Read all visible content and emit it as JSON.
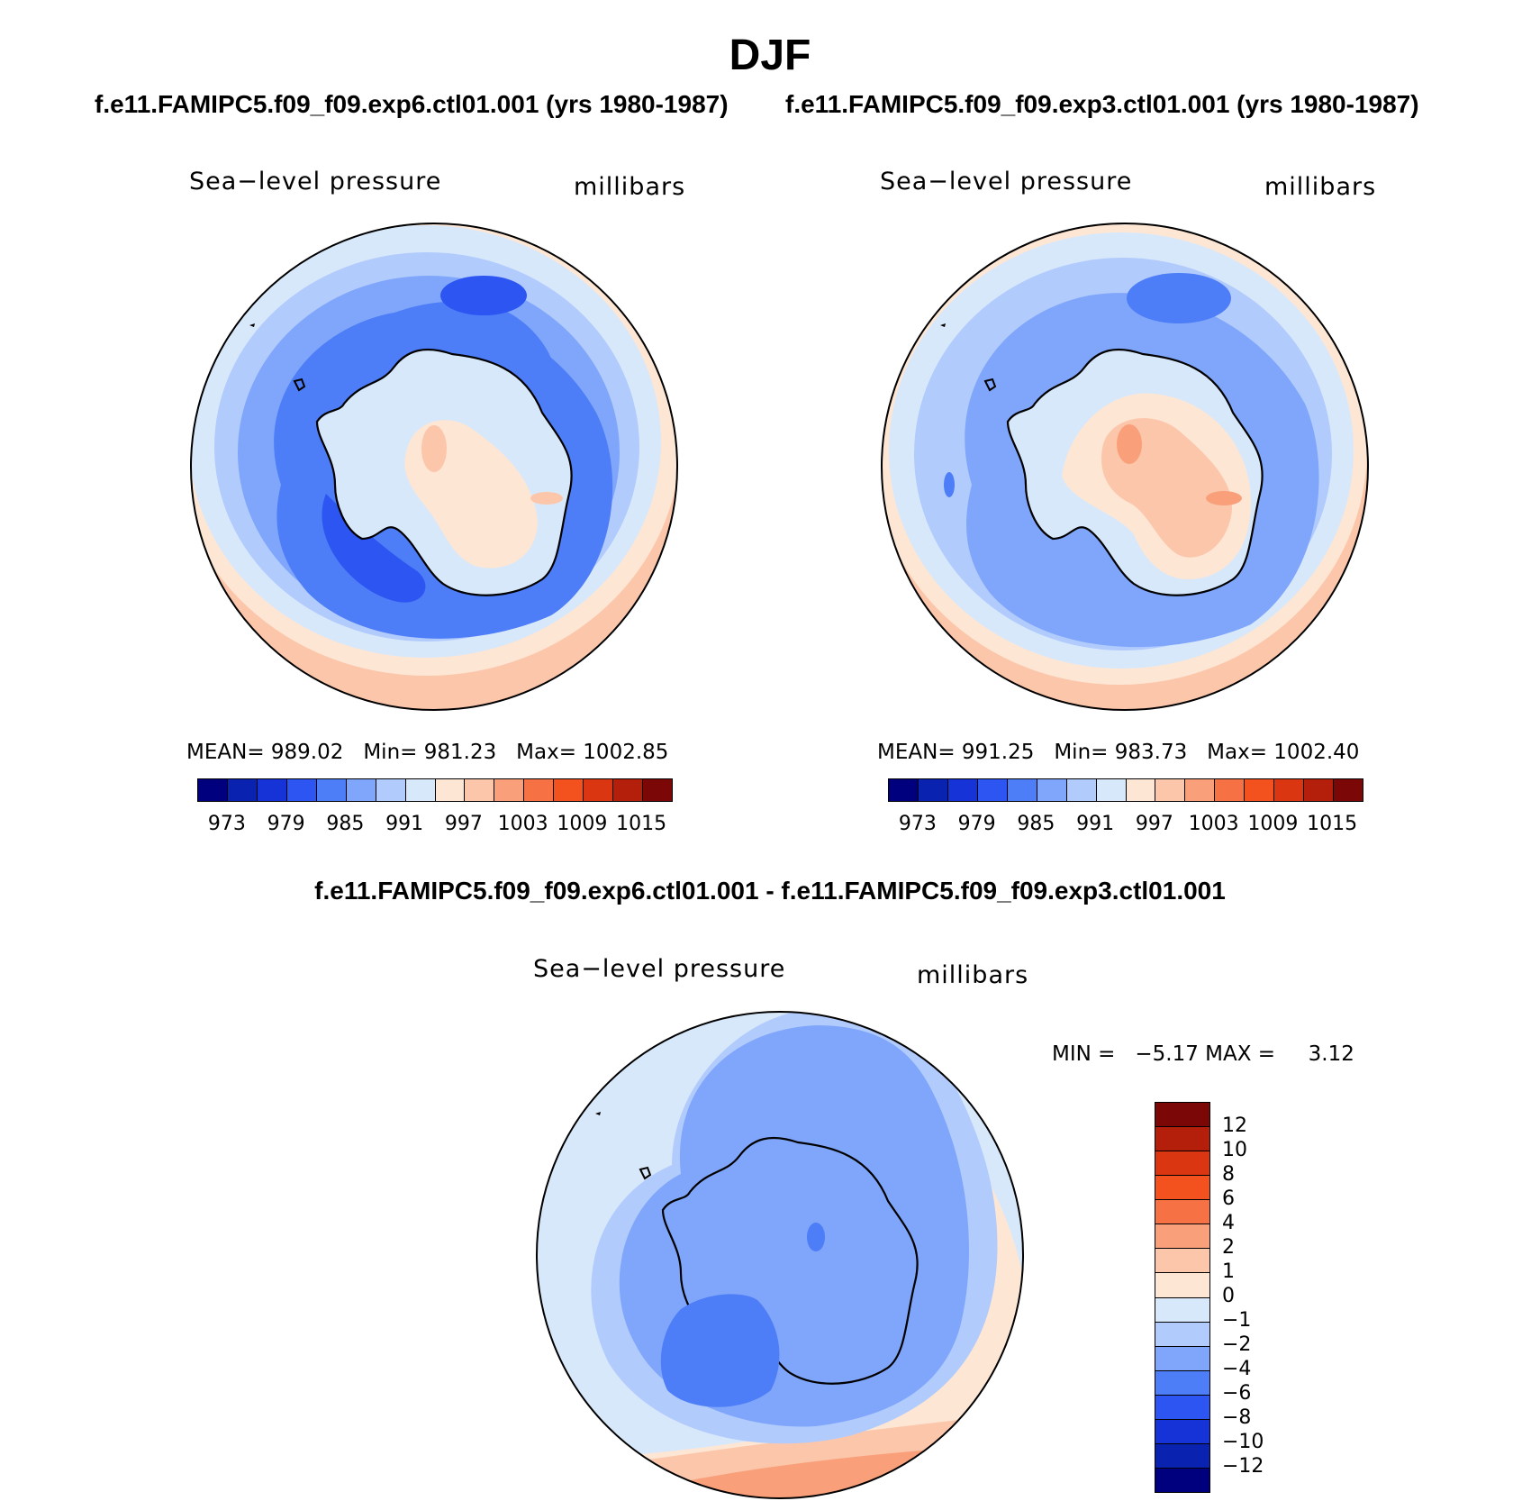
{
  "figure": {
    "season": "DJF",
    "test_case": "f.e11.FAMIPC5.f09_f09.exp6.ctl01.001 (yrs 1980-1987)",
    "control_case": "f.e11.FAMIPC5.f09_f09.exp3.ctl01.001 (yrs 1980-1987)",
    "diff_title": "f.e11.FAMIPC5.f09_f09.exp6.ctl01.001 - f.e11.FAMIPC5.f09_f09.exp3.ctl01.001"
  },
  "panels": {
    "test": {
      "variable": "Sea−level pressure",
      "units": "millibars",
      "mean_label": "MEAN=",
      "mean": "989.02",
      "min_label": "Min=",
      "min": "981.23",
      "max_label": "Max=",
      "max": "1002.85"
    },
    "control": {
      "variable": "Sea−level pressure",
      "units": "millibars",
      "mean_label": "MEAN=",
      "mean": "991.25",
      "min_label": "Min=",
      "min": "983.73",
      "max_label": "Max=",
      "max": "1002.40"
    },
    "difference": {
      "variable": "Sea−level pressure",
      "units": "millibars",
      "min_label": "MIN =",
      "min": "−5.17",
      "max_label": "MAX =",
      "max": "3.12"
    }
  },
  "colorbars": {
    "absolute": {
      "ticks": [
        "973",
        "979",
        "985",
        "991",
        "997",
        "1003",
        "1009",
        "1015"
      ],
      "colors": [
        "#00007f",
        "#0a22b0",
        "#1533d6",
        "#2c55f2",
        "#4d7df7",
        "#7fa6fb",
        "#b2cbfd",
        "#d8e8fb",
        "#fde6d4",
        "#fcc6ab",
        "#f9a07a",
        "#f67244",
        "#f3521f",
        "#db3612",
        "#b41f0c",
        "#7c0707"
      ]
    },
    "difference": {
      "ticks": [
        "12",
        "10",
        "8",
        "6",
        "4",
        "2",
        "1",
        "0",
        "−1",
        "−2",
        "−4",
        "−6",
        "−8",
        "−10",
        "−12"
      ],
      "colors": [
        "#7c0707",
        "#b41f0c",
        "#db3612",
        "#f3521f",
        "#f67244",
        "#f9a07a",
        "#fcc6ab",
        "#fde6d4",
        "#d8e8fb",
        "#b2cbfd",
        "#7fa6fb",
        "#4d7df7",
        "#2c55f2",
        "#1533d6",
        "#0a22b0",
        "#00007f"
      ]
    }
  },
  "maps": {
    "projection": "south-polar-stereographic",
    "region": "Antarctica / Southern Ocean"
  }
}
